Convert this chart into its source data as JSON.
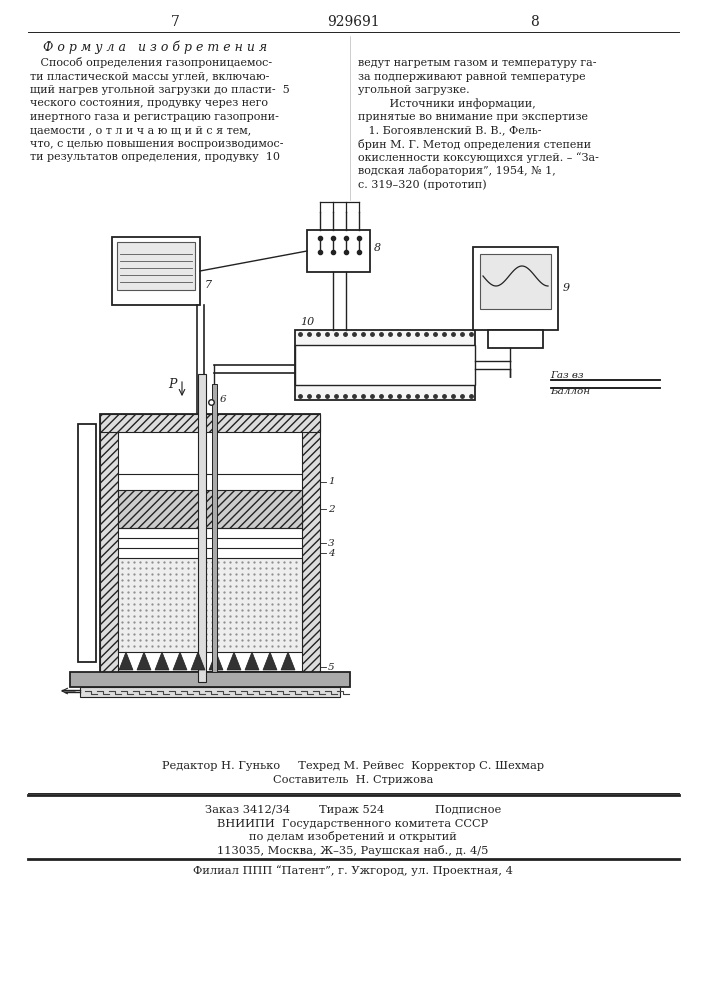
{
  "title_top_left": "7",
  "title_center": "929691",
  "title_top_right": "8",
  "left_heading": "Ф о р м у л а   и з о б р е т е н и я",
  "left_col_lines": [
    "   Способ определения газопроницаемос-",
    "ти пластической массы углей, включаю-",
    "щий нагрев угольной загрузки до пласти-  5",
    "ческого состояния, продувку через него",
    "инертного газа и регистрацию газопрони-",
    "цаемости , о т л и ч а ю щ и й с я тем,",
    "что, с целью повышения воспроизводимос-",
    "ти результатов определения, продувку  10"
  ],
  "right_col_lines": [
    "ведут нагретым газом и температуру га-",
    "за подперживают равной температуре",
    "угольной загрузке.",
    "         Источники информации,",
    "принятые во внимание при экспертизе",
    "   1. Богоявленский В. В., Фель-",
    "брин М. Г. Метод определения степени",
    "окисленности коксующихся углей. – “За-",
    "водская лаборатория”, 1954, № 1,",
    "с. 319–320 (прототип)"
  ],
  "bottom_composer": "Составитель  Н. Стрижова",
  "bottom_editor": "Редактор Н. Гунько     Техред М. Рейвес  Корректор С. Шехмар",
  "bottom_order": "Заказ 3412/34        Тираж 524              Подписное",
  "bottom_org": "ВНИИПИ  Государственного комитета СССР",
  "bottom_dept": "по делам изобретений и открытий",
  "bottom_addr": "113035, Москва, Ж–35, Раушская наб., д. 4/5",
  "bottom_branch": "Филиал ППП “Патент”, г. Ужгород, ул. Проектная, 4",
  "label_gas": "Газ вз",
  "label_balloon": "Баллон"
}
